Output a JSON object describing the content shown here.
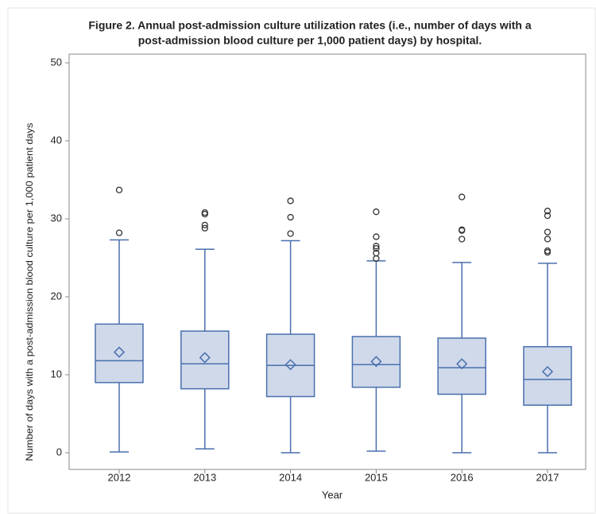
{
  "chart_data": {
    "type": "boxplot",
    "title": [
      "Figure 2. Annual post-admission culture utilization rates (i.e., number of days with a",
      "post-admission blood culture per 1,000 patient days) by hospital."
    ],
    "x_label": "Year",
    "y_label": "Number of days with a post-admission blood culture per 1,000 patient days",
    "categories": [
      "2012",
      "2013",
      "2014",
      "2015",
      "2016",
      "2017"
    ],
    "boxes": [
      {
        "whisker_low": 0.1,
        "q1": 9.0,
        "median": 11.8,
        "q3": 16.5,
        "whisker_high": 27.3,
        "mean": 12.9,
        "outliers": [
          28.2,
          33.7
        ]
      },
      {
        "whisker_low": 0.5,
        "q1": 8.2,
        "median": 11.4,
        "q3": 15.6,
        "whisker_high": 26.1,
        "mean": 12.2,
        "outliers": [
          28.8,
          29.2,
          30.6,
          30.8
        ]
      },
      {
        "whisker_low": 0,
        "q1": 7.2,
        "median": 11.2,
        "q3": 15.2,
        "whisker_high": 27.2,
        "mean": 11.3,
        "outliers": [
          28.1,
          30.2,
          32.3
        ]
      },
      {
        "whisker_low": 0.2,
        "q1": 8.4,
        "median": 11.3,
        "q3": 14.9,
        "whisker_high": 24.6,
        "mean": 11.7,
        "outliers": [
          24.9,
          25.6,
          26.2,
          26.5,
          27.7,
          30.9
        ]
      },
      {
        "whisker_low": 0,
        "q1": 7.5,
        "median": 10.9,
        "q3": 14.7,
        "whisker_high": 24.4,
        "mean": 11.4,
        "outliers": [
          27.4,
          28.5,
          28.6,
          32.8
        ]
      },
      {
        "whisker_low": 0,
        "q1": 6.1,
        "median": 9.4,
        "q3": 13.6,
        "whisker_high": 24.3,
        "mean": 10.4,
        "outliers": [
          25.7,
          25.9,
          27.4,
          28.3,
          30.4,
          31.0
        ]
      }
    ],
    "box_color": "#cfd9ea",
    "line_color": "#4a6fae",
    "outlier_color": "#333333",
    "ylim": [
      0,
      50
    ],
    "yticks": [
      0,
      10,
      20,
      30,
      40,
      50
    ]
  }
}
